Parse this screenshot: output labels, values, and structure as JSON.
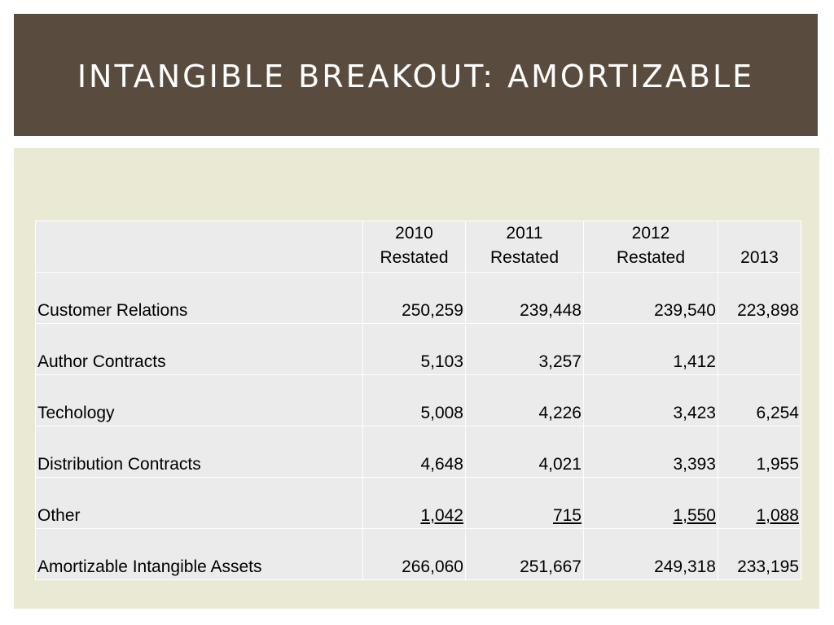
{
  "slide": {
    "title": "INTANGIBLE BREAKOUT: AMORTIZABLE"
  },
  "colors": {
    "title_bar": "#594c3e",
    "content_bg": "#eae9d3",
    "table_cell": "#ebebeb"
  },
  "table": {
    "headers": [
      {
        "line1": "",
        "line2": ""
      },
      {
        "line1": "2010",
        "line2": "Restated"
      },
      {
        "line1": "2011",
        "line2": "Restated"
      },
      {
        "line1": "2012",
        "line2": "Restated"
      },
      {
        "line1": "",
        "line2": "2013"
      }
    ],
    "rows": [
      {
        "label": "Customer Relations",
        "values": [
          "250,259",
          "239,448",
          "239,540",
          "223,898"
        ],
        "underlined": false
      },
      {
        "label": "Author Contracts",
        "values": [
          "5,103",
          "3,257",
          "1,412",
          ""
        ],
        "underlined": false
      },
      {
        "label": "Techology",
        "values": [
          "5,008",
          "4,226",
          "3,423",
          "6,254"
        ],
        "underlined": false
      },
      {
        "label": "Distribution Contracts",
        "values": [
          "4,648",
          "4,021",
          "3,393",
          "1,955"
        ],
        "underlined": false
      },
      {
        "label": "Other",
        "values": [
          "1,042",
          "715",
          "1,550",
          "1,088"
        ],
        "underlined": true
      },
      {
        "label": "Amortizable Intangible Assets",
        "values": [
          "266,060",
          "251,667",
          "249,318",
          "233,195"
        ],
        "underlined": false
      }
    ]
  }
}
